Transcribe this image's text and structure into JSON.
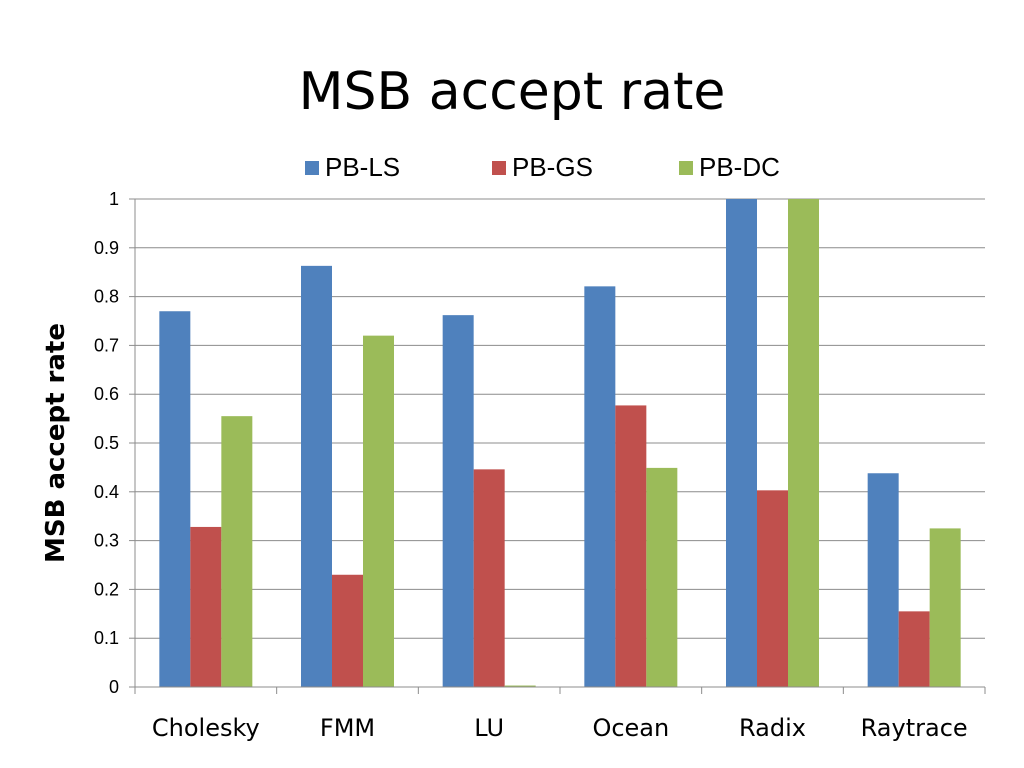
{
  "chart_data": {
    "type": "bar",
    "title": "MSB accept rate",
    "ylabel": "MSB accept rate",
    "xlabel": "",
    "ylim": [
      0,
      1
    ],
    "yticks": [
      "0",
      "0.1",
      "0.2",
      "0.3",
      "0.4",
      "0.5",
      "0.6",
      "0.7",
      "0.8",
      "0.9",
      "1"
    ],
    "grid": true,
    "legend_position": "top",
    "categories": [
      "Cholesky",
      "FMM",
      "LU",
      "Ocean",
      "Radix",
      "Raytrace"
    ],
    "series": [
      {
        "name": "PB-LS",
        "color": "#4F81BD",
        "values": [
          0.77,
          0.863,
          0.762,
          0.821,
          1.0,
          0.438
        ]
      },
      {
        "name": "PB-GS",
        "color": "#C0504D",
        "values": [
          0.328,
          0.23,
          0.446,
          0.577,
          0.403,
          0.155
        ]
      },
      {
        "name": "PB-DC",
        "color": "#9BBB59",
        "values": [
          0.555,
          0.72,
          0.003,
          0.449,
          1.0,
          0.325
        ]
      }
    ]
  }
}
